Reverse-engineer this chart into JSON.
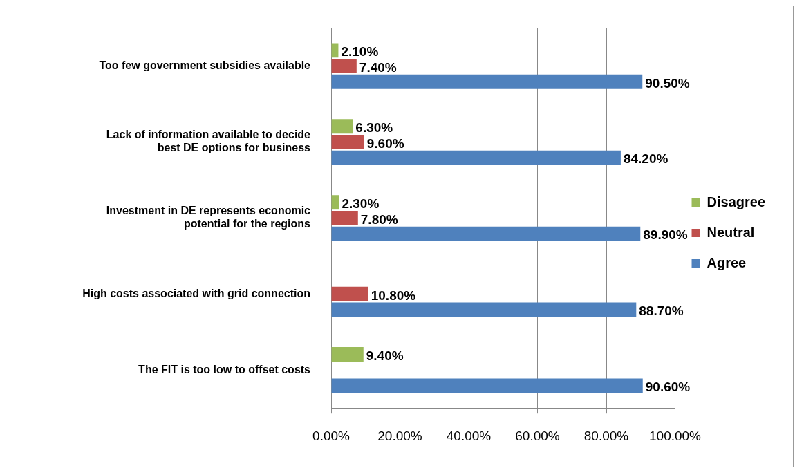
{
  "chart_data": {
    "type": "bar",
    "orientation": "horizontal",
    "categories": [
      "Too few government subsidies available",
      "Lack of information available to decide best DE options for business",
      "Investment in DE represents economic potential for the regions",
      "High costs associated with grid connection",
      "The FIT is too low to offset costs"
    ],
    "series": [
      {
        "name": "Disagree",
        "color": "#9bbb59",
        "values": [
          2.1,
          6.3,
          2.3,
          null,
          9.4
        ],
        "value_labels": [
          "2.10%",
          "6.30%",
          "2.30%",
          null,
          "9.40%"
        ]
      },
      {
        "name": "Neutral",
        "color": "#c0504d",
        "values": [
          7.4,
          9.6,
          7.8,
          10.8,
          null
        ],
        "value_labels": [
          "7.40%",
          "9.60%",
          "7.80%",
          "10.80%",
          null
        ]
      },
      {
        "name": "Agree",
        "color": "#4f81bd",
        "values": [
          90.5,
          84.2,
          89.9,
          88.7,
          90.6
        ],
        "value_labels": [
          "90.50%",
          "84.20%",
          "89.90%",
          "88.70%",
          "90.60%"
        ]
      }
    ],
    "xlim": [
      0,
      100
    ],
    "xticks": [
      {
        "value": 0,
        "label": "0.00%"
      },
      {
        "value": 20,
        "label": "20.00%"
      },
      {
        "value": 40,
        "label": "40.00%"
      },
      {
        "value": 60,
        "label": "60.00%"
      },
      {
        "value": 80,
        "label": "80.00%"
      },
      {
        "value": 100,
        "label": "100.00%"
      }
    ],
    "grid": "x",
    "legend": "right"
  }
}
